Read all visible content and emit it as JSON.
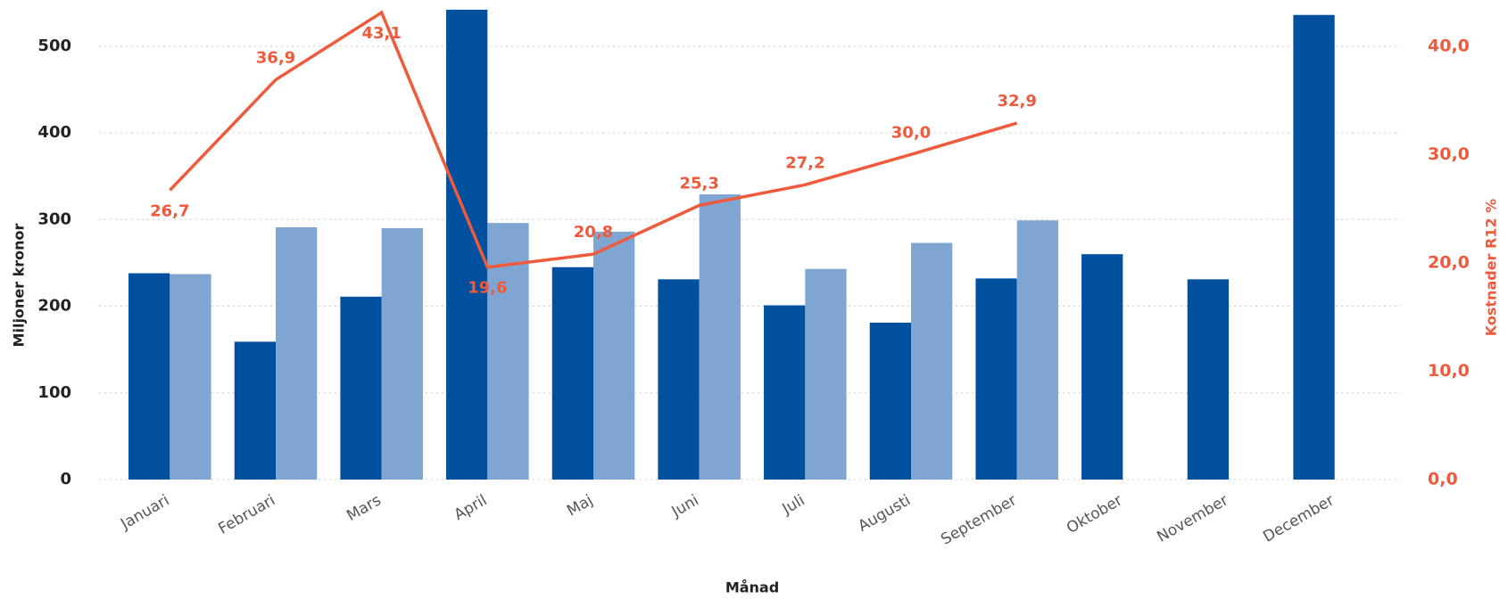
{
  "chart_data": {
    "type": "bar_line",
    "x_label": "Månad",
    "y_label": "Miljoner kronor",
    "y2_label": "Kostnader R12 %",
    "categories": [
      "Januari",
      "Februari",
      "Mars",
      "April",
      "Maj",
      "Juni",
      "Juli",
      "Augusti",
      "September",
      "Oktober",
      "November",
      "December"
    ],
    "series": [
      {
        "type": "bar",
        "color": "#0050a0",
        "values": [
          238,
          159,
          211,
          542,
          245,
          231,
          201,
          181,
          232,
          260,
          231,
          536
        ]
      },
      {
        "type": "bar",
        "color": "#7fa6d2",
        "values": [
          237,
          291,
          290,
          296,
          286,
          329,
          243,
          273,
          299,
          null,
          null,
          null
        ]
      },
      {
        "type": "line",
        "axis": "y2",
        "color": "#f05a3c",
        "values": [
          26.7,
          36.9,
          43.1,
          19.6,
          20.8,
          25.3,
          27.2,
          30.0,
          32.9,
          null,
          null,
          null
        ],
        "value_labels": [
          "26,7",
          "36,9",
          "43,1",
          "19,6",
          "20,8",
          "25,3",
          "27,2",
          "30,0",
          "32,9",
          null,
          null,
          null
        ]
      }
    ],
    "ylim": [
      0,
      545
    ],
    "yticks": [
      0,
      100,
      200,
      300,
      400,
      500
    ],
    "y2lim": [
      0,
      43.6
    ],
    "y2ticks": [
      {
        "value": 0,
        "label": "0,0"
      },
      {
        "value": 10,
        "label": "10,0"
      },
      {
        "value": 20,
        "label": "20,0"
      },
      {
        "value": 30,
        "label": "30,0"
      },
      {
        "value": 40,
        "label": "40,0"
      }
    ],
    "grid": true
  }
}
